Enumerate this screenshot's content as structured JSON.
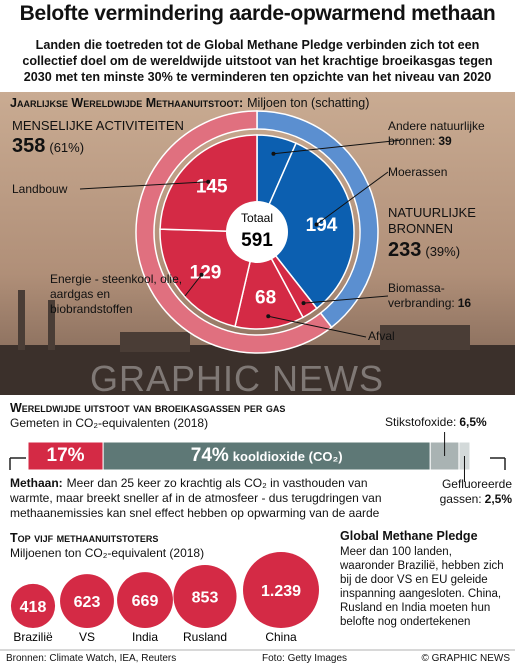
{
  "title": "Belofte vermindering aarde-opwarmend methaan",
  "subtitle": "Landen die toetreden tot de Global Methane Pledge verbinden zich tot een collectief doel om de wereldwijde uitstoot van het krachtige broeikasgas tegen 2030 met ten minste 30% te verminderen ten opzichte van het niveau van 2020",
  "watermark": "GRAPHIC NEWS",
  "chart_data": [
    {
      "type": "donut",
      "title": "Jaarlijkse Wereldwijde Methaanuitstoot:",
      "subtitle": "Miljoen ton (schatting)",
      "total_label": "Totaal",
      "total": 591,
      "groups": [
        {
          "name": "NATUURLIJKE BRONNEN",
          "value": 233,
          "share_label": "(39%)",
          "color": "#0c5fb0",
          "ring_color": "#5b8fd0"
        },
        {
          "name": "MENSELIJKE ACTIVITEITEN",
          "value": 358,
          "share_label": "(61%)",
          "color": "#d42a45",
          "ring_color": "#e0707f"
        }
      ],
      "categories": [
        "Andere natuurlijke bronnen:",
        "Moerassen",
        "Biomassa-verbranding:",
        "Afval",
        "Energie - steenkool, olie, aardgas en biobrandstoffen",
        "Landbouw"
      ],
      "values": [
        39,
        194,
        16,
        68,
        129,
        145
      ],
      "colors": [
        "#0c5fb0",
        "#0c5fb0",
        "#d42a45",
        "#d42a45",
        "#d42a45",
        "#d42a45"
      ]
    },
    {
      "type": "stacked-bar",
      "title": "Wereldwijde uitstoot van broeikasgassen per gas",
      "subtitle": "Gemeten in CO₂-equivalenten (2018)",
      "categories": [
        null,
        "kooldioxide (CO₂)",
        "Stikstofoxide:",
        "Gefluoreerde gassen:"
      ],
      "values": [
        17,
        74,
        6.5,
        2.5
      ],
      "value_labels": [
        "17%",
        "74%",
        "6,5%",
        "2,5%"
      ],
      "colors": [
        "#d42a45",
        "#5e7876",
        "#a9b3b3",
        "#d3d9d9"
      ]
    },
    {
      "type": "bubble",
      "title": "Top vijf methaanuitstoters",
      "subtitle": "Miljoenen ton CO₂-equivalent (2018)",
      "categories": [
        "Brazilië",
        "VS",
        "India",
        "Rusland",
        "China"
      ],
      "values": [
        418,
        623,
        669,
        853,
        1239
      ],
      "value_labels": [
        "418",
        "623",
        "669",
        "853",
        "1.239"
      ],
      "color": "#d42a45"
    }
  ],
  "methane_note": {
    "label": "Methaan:",
    "text": "Meer dan 25 keer zo krachtig als CO₂ in vasthouden van warmte, maar breekt sneller af in de atmosfeer - dus terugdringen van methaanemissies kan snel effect hebben op opwarming van de aarde"
  },
  "pledge": {
    "title": "Global Methane Pledge",
    "text": "Meer dan 100 landen, waaronder Brazilië, hebben zich bij de door VS en EU geleide inspanning aangesloten. China, Rusland en India moeten hun belofte nog ondertekenen"
  },
  "footer": {
    "sources": "Bronnen: Climate Watch, IEA, Reuters",
    "photo": "Foto: Getty Images",
    "copyright": "© GRAPHIC NEWS"
  }
}
